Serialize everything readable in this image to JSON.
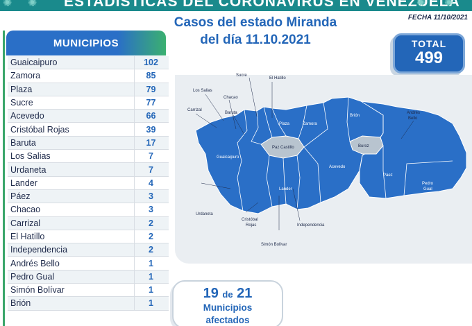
{
  "banner": {
    "title": "ESTADÍSTICAS DEL CORONAVIRUS EN VENEZUELA"
  },
  "fecha": "FECHA 11/10/2021",
  "title": {
    "line1": "Casos del estado Miranda",
    "line2": "del día 11.10.2021"
  },
  "municipios": {
    "header": "MUNICIPIOS",
    "rows": [
      {
        "name": "Guaicaipuro",
        "value": "102"
      },
      {
        "name": "Zamora",
        "value": "85"
      },
      {
        "name": "Plaza",
        "value": "79"
      },
      {
        "name": "Sucre",
        "value": "77"
      },
      {
        "name": "Acevedo",
        "value": "66"
      },
      {
        "name": "Cristóbal Rojas",
        "value": "39"
      },
      {
        "name": "Baruta",
        "value": "17"
      },
      {
        "name": "Los Salias",
        "value": "7"
      },
      {
        "name": "Urdaneta",
        "value": "7"
      },
      {
        "name": "Lander",
        "value": "4"
      },
      {
        "name": "Páez",
        "value": "3"
      },
      {
        "name": "Chacao",
        "value": "3"
      },
      {
        "name": "Carrizal",
        "value": "2"
      },
      {
        "name": "El Hatillo",
        "value": "2"
      },
      {
        "name": "Independencia",
        "value": "2"
      },
      {
        "name": "Andrés Bello",
        "value": "1"
      },
      {
        "name": "Pedro Gual",
        "value": "1"
      },
      {
        "name": "Simón Bolívar",
        "value": "1"
      },
      {
        "name": "Brión",
        "value": "1"
      }
    ]
  },
  "total": {
    "label": "TOTAL",
    "value": "499"
  },
  "map": {
    "labels": {
      "sucre": "Sucre",
      "el_hatillo": "El Hatillo",
      "los_salias": "Los Salias",
      "chacao": "Chacao",
      "carrizal": "Carrizal",
      "baruta": "Baruta",
      "plaza": "Plaza",
      "zamora": "Zamora",
      "brion": "Brión",
      "andres_bello_1": "Andrés",
      "andres_bello_2": "Bello",
      "buroz": "Buroz",
      "paz_castillo": "Paz Castillo",
      "guaicaipuro": "Guaicaipuro",
      "acevedo": "Acevedo",
      "paez": "Páez",
      "pedro_gual_1": "Pedro",
      "pedro_gual_2": "Gual",
      "lander": "Lander",
      "urdaneta": "Urdaneta",
      "cristobal_rojas_1": "Cristóbal",
      "cristobal_rojas_2": "Rojas",
      "independencia": "Independencia",
      "simon_bolivar": "Simón Bolívar"
    },
    "colors": {
      "affected": "#2a6fc7",
      "unaffected": "#b8c4cf",
      "background": "#eaeef2"
    }
  },
  "affected": {
    "count": "19",
    "de": "de",
    "total": "21",
    "line2": "Municipios",
    "line3": "afectados"
  }
}
